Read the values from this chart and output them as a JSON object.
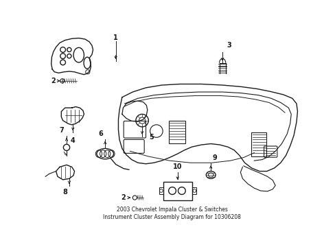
{
  "title": "2003 Chevrolet Impala Cluster & Switches\nInstrument Cluster Assembly Diagram for 10306208",
  "background_color": "#ffffff",
  "line_color": "#1a1a1a",
  "figsize": [
    4.89,
    3.6
  ],
  "dpi": 100
}
